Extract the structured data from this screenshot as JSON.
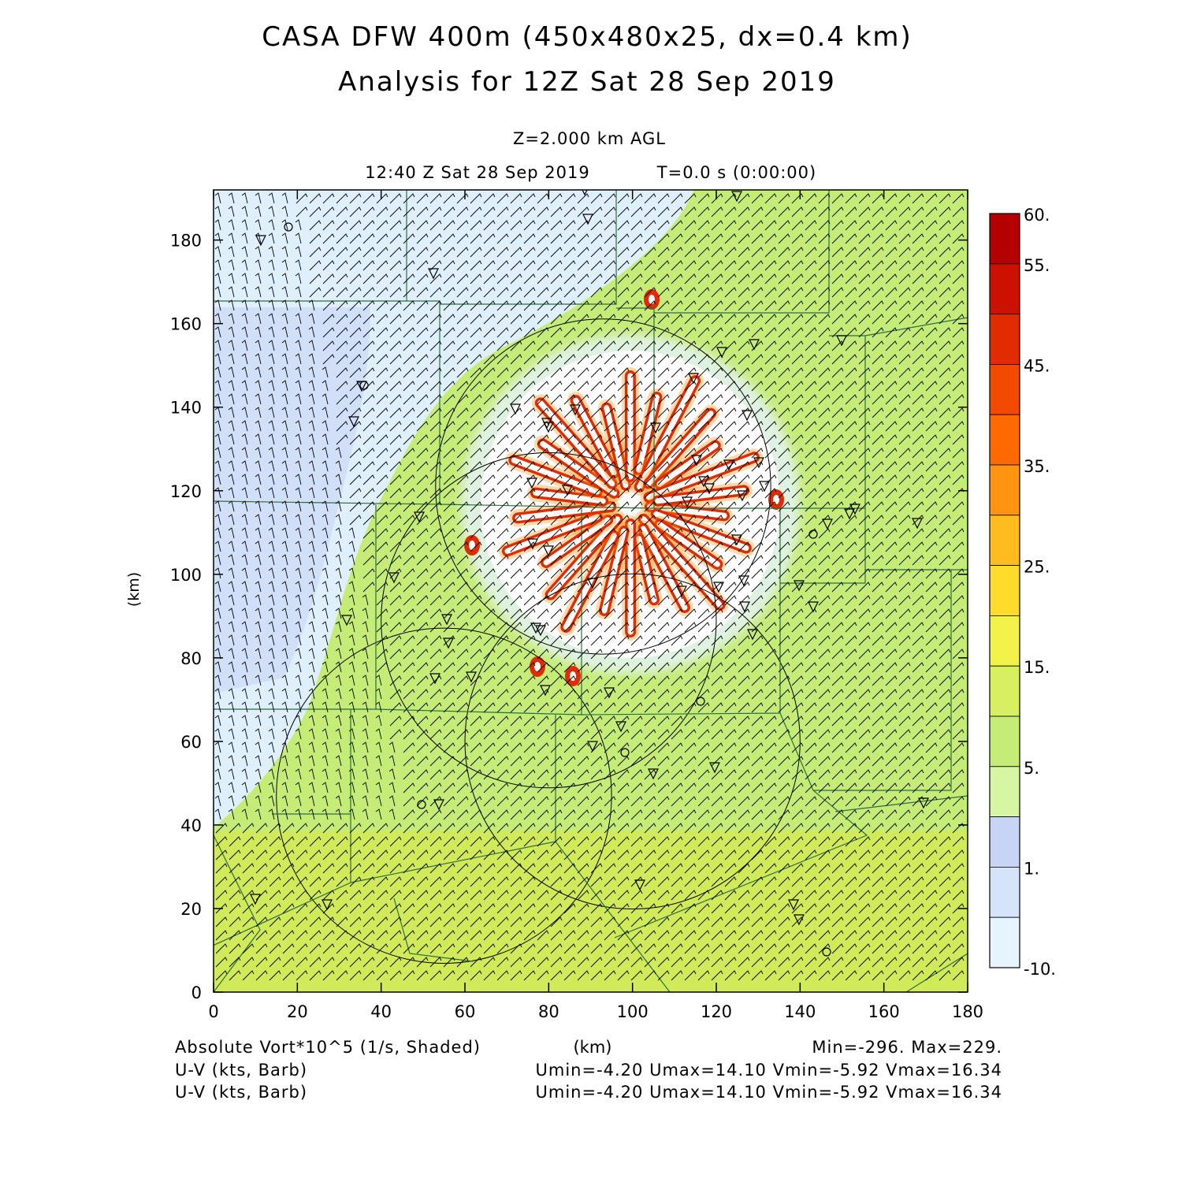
{
  "header": {
    "title_line1": "CASA DFW 400m (450x480x25, dx=0.4 km)",
    "title_line2": "Analysis for 12Z Sat 28 Sep 2019",
    "level": "Z=2.000 km AGL",
    "valid_time": "12:40 Z Sat 28 Sep 2019",
    "elapsed": "T=0.0 s (0:00:00)"
  },
  "axes": {
    "x_unit": "(km)",
    "y_unit": "(km)",
    "x_range": [
      0,
      180
    ],
    "y_range": [
      0,
      192
    ],
    "x_ticks": [
      "0",
      "20",
      "40",
      "60",
      "80",
      "100",
      "120",
      "140",
      "160",
      "180"
    ],
    "y_ticks": [
      "0",
      "20",
      "40",
      "60",
      "80",
      "100",
      "120",
      "140",
      "160",
      "180"
    ]
  },
  "colorbar": {
    "labels": [
      "60.",
      "55.",
      "45.",
      "35.",
      "25.",
      "15.",
      "5.",
      "1.",
      "-10."
    ],
    "colors": [
      "#b40000",
      "#cc1100",
      "#e02c00",
      "#f24a00",
      "#ff6a00",
      "#ff9410",
      "#ffbc1e",
      "#ffdc2c",
      "#f2f24a",
      "#d8f060",
      "#c6ec78",
      "#d6f6a4",
      "#c8d4f6",
      "#d6e4fa",
      "#e6f4fd"
    ]
  },
  "field": {
    "background_color": "#c6ec78",
    "southern_band_color": "#d0ea5a",
    "western_color": "#dfeffb",
    "storm_color": "#ffffff",
    "vortex_color": "#e02c00"
  },
  "radar_rings": [
    {
      "center_km": [
        93,
        121
      ],
      "radius_km": 40
    },
    {
      "center_km": [
        80,
        89
      ],
      "radius_km": 40
    },
    {
      "center_km": [
        100,
        60
      ],
      "radius_km": 40
    },
    {
      "center_km": [
        55,
        47
      ],
      "radius_km": 40
    }
  ],
  "footer": {
    "field1": "Absolute Vort*10^5 (1/s, Shaded)",
    "field2": "U-V (kts, Barb)",
    "field3": "U-V (kts, Barb)",
    "xunit": "(km)",
    "minmax": "Min=-296. Max=229.",
    "uv1": "Umin=-4.20 Umax=14.10 Vmin=-5.92 Vmax=16.34",
    "uv2": "Umin=-4.20 Umax=14.10 Vmin=-5.92 Vmax=16.34"
  }
}
